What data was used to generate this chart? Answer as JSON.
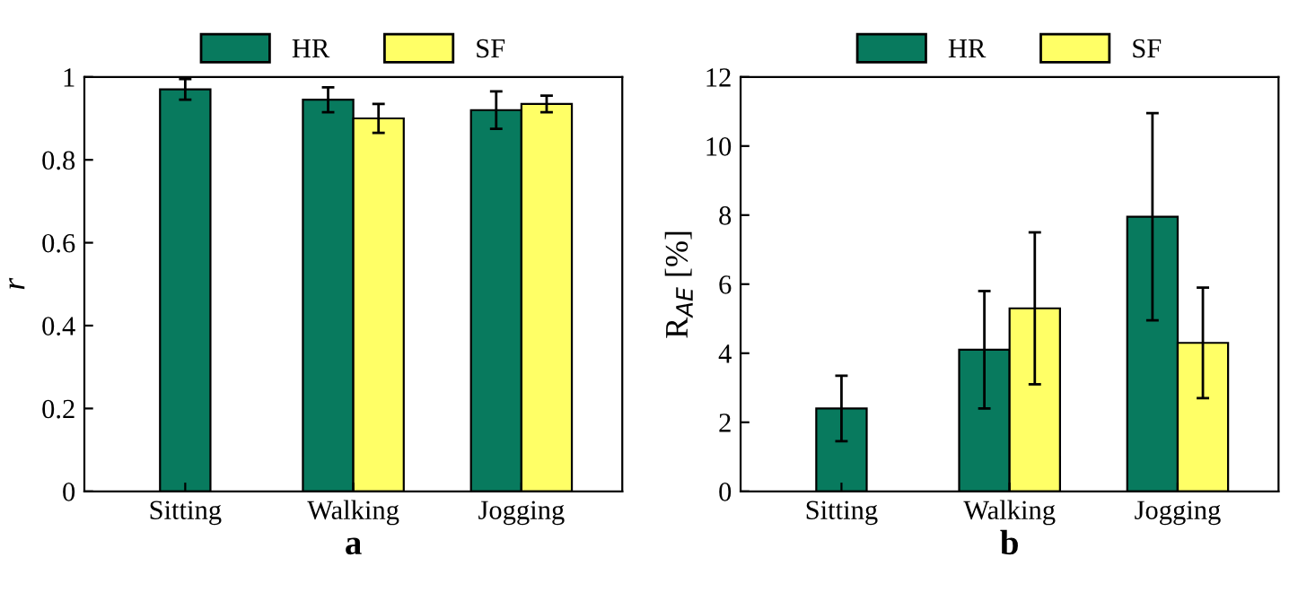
{
  "chart_data": [
    {
      "type": "bar",
      "xlabel": "a",
      "ylabel": "r",
      "categories": [
        "Sitting",
        "Walking",
        "Jogging"
      ],
      "ylim": [
        0,
        1
      ],
      "yticks": [
        0,
        0.2,
        0.4,
        0.6,
        0.8,
        1
      ],
      "grid": false,
      "legend": "top",
      "series": [
        {
          "name": "HR",
          "color": "#087a5e",
          "values": [
            0.97,
            0.945,
            0.92
          ],
          "errors": [
            0.025,
            0.03,
            0.045
          ]
        },
        {
          "name": "SF",
          "color": "#ffff66",
          "values": [
            null,
            0.9,
            0.935
          ],
          "errors": [
            null,
            0.035,
            0.02
          ]
        }
      ]
    },
    {
      "type": "bar",
      "xlabel": "b",
      "ylabel": "R$_{AE}$ [%]",
      "categories": [
        "Sitting",
        "Walking",
        "Jogging"
      ],
      "ylim": [
        0,
        12
      ],
      "yticks": [
        0,
        2,
        4,
        6,
        8,
        10,
        12
      ],
      "grid": false,
      "legend": "top",
      "series": [
        {
          "name": "HR",
          "color": "#087a5e",
          "values": [
            2.4,
            4.1,
            7.95
          ],
          "errors": [
            0.95,
            1.7,
            3.0
          ]
        },
        {
          "name": "SF",
          "color": "#ffff66",
          "values": [
            null,
            5.3,
            4.3
          ],
          "errors": [
            null,
            2.2,
            1.6
          ]
        }
      ]
    }
  ]
}
